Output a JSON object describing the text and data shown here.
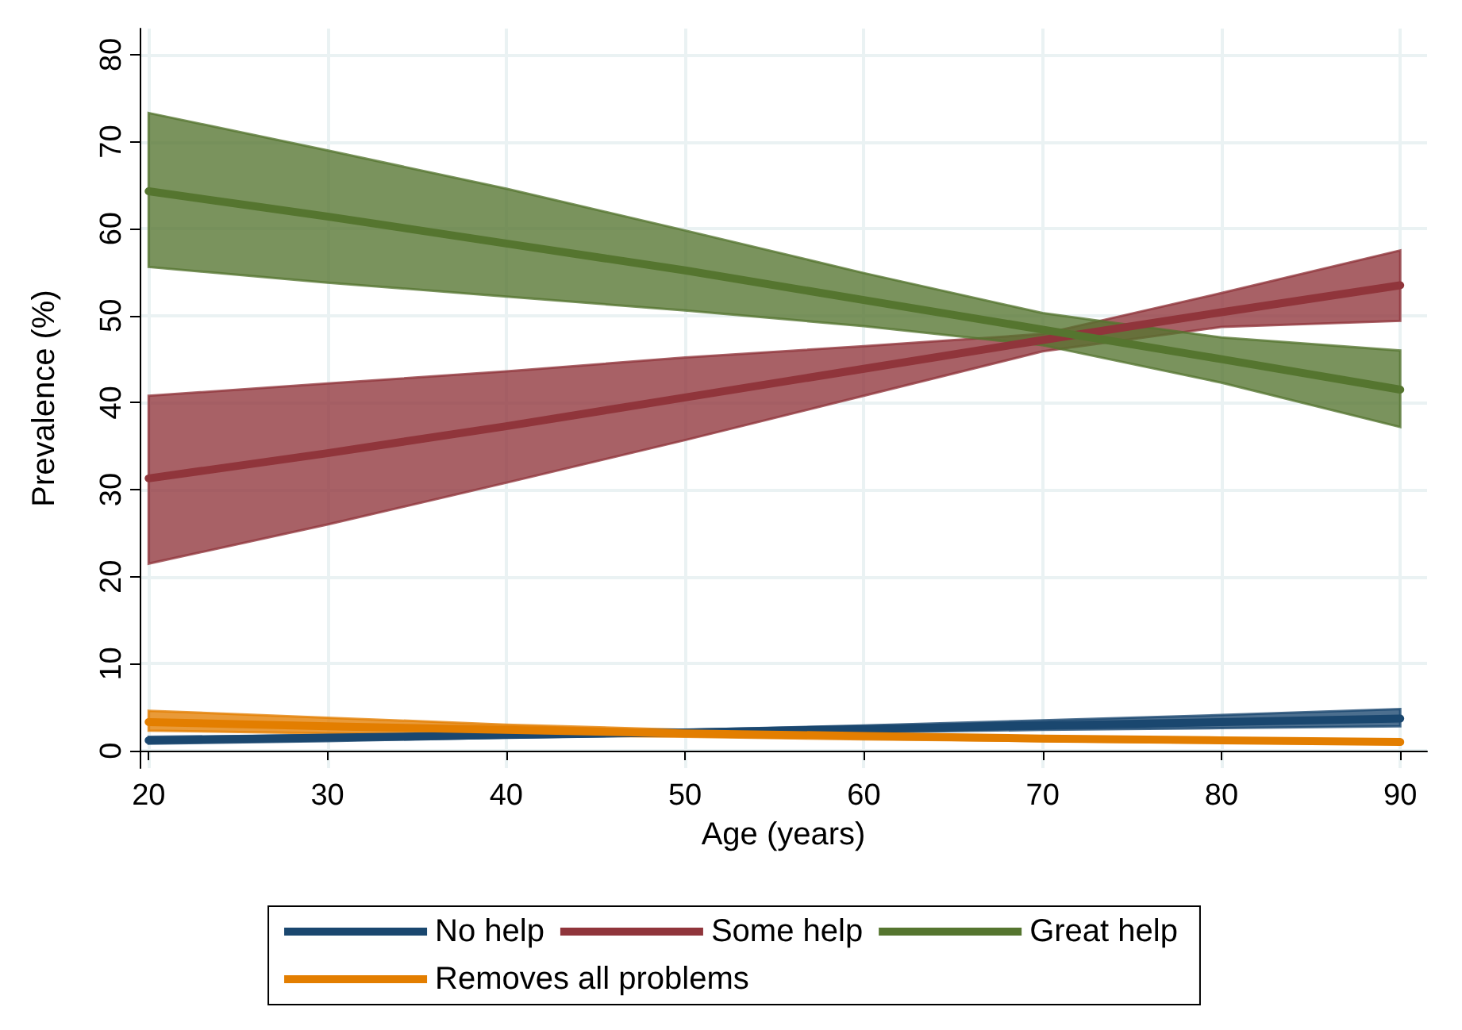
{
  "chart_data": {
    "type": "line",
    "xlabel": "Age (years)",
    "ylabel": "Prevalence (%)",
    "x": [
      20,
      30,
      40,
      50,
      60,
      70,
      80,
      90
    ],
    "series": [
      {
        "name": "No help",
        "color": "#1a476f",
        "values": [
          1.2,
          1.5,
          1.8,
          2.1,
          2.5,
          2.9,
          3.3,
          3.7
        ],
        "lower": [
          0.8,
          1.1,
          1.5,
          1.8,
          2.1,
          2.4,
          2.6,
          2.8
        ],
        "upper": [
          1.6,
          1.8,
          2.0,
          2.4,
          2.9,
          3.5,
          4.1,
          4.8
        ]
      },
      {
        "name": "Some help",
        "color": "#90353b",
        "values": [
          31.3,
          34.2,
          37.3,
          40.6,
          43.9,
          47.2,
          50.4,
          53.5
        ],
        "lower": [
          21.5,
          26,
          30.8,
          35.7,
          40.8,
          45.9,
          48.7,
          49.4
        ],
        "upper": [
          40.8,
          42.2,
          43.6,
          45.2,
          46.5,
          47.9,
          52.6,
          57.5
        ]
      },
      {
        "name": "Great help",
        "color": "#55752f",
        "values": [
          64.3,
          61.4,
          58.3,
          55.2,
          51.8,
          48.4,
          45,
          41.5
        ],
        "lower": [
          55.6,
          53.8,
          52.2,
          50.6,
          48.8,
          46.6,
          42.3,
          37.2
        ],
        "upper": [
          73.3,
          69,
          64.6,
          59.8,
          54.9,
          50.3,
          47.5,
          46
        ]
      },
      {
        "name": "Removes all problems",
        "color": "#e37e00",
        "values": [
          3.3,
          2.8,
          2.4,
          2.0,
          1.7,
          1.4,
          1.2,
          1.0
        ],
        "lower": [
          2.3,
          2.0,
          1.8,
          1.6,
          1.3,
          1.1,
          0.9,
          0.8
        ],
        "upper": [
          4.6,
          3.8,
          3.0,
          2.4,
          2.0,
          1.6,
          1.3,
          1.1
        ]
      }
    ],
    "xlim": [
      19.5,
      91.5
    ],
    "xticks": [
      20,
      30,
      40,
      50,
      60,
      70,
      80,
      90
    ],
    "ylim": [
      -2,
      83
    ],
    "yticks": [
      0,
      10,
      20,
      30,
      40,
      50,
      60,
      70,
      80
    ],
    "grid": true,
    "legend": "bottom",
    "marker": "none",
    "line_style": "solid"
  }
}
